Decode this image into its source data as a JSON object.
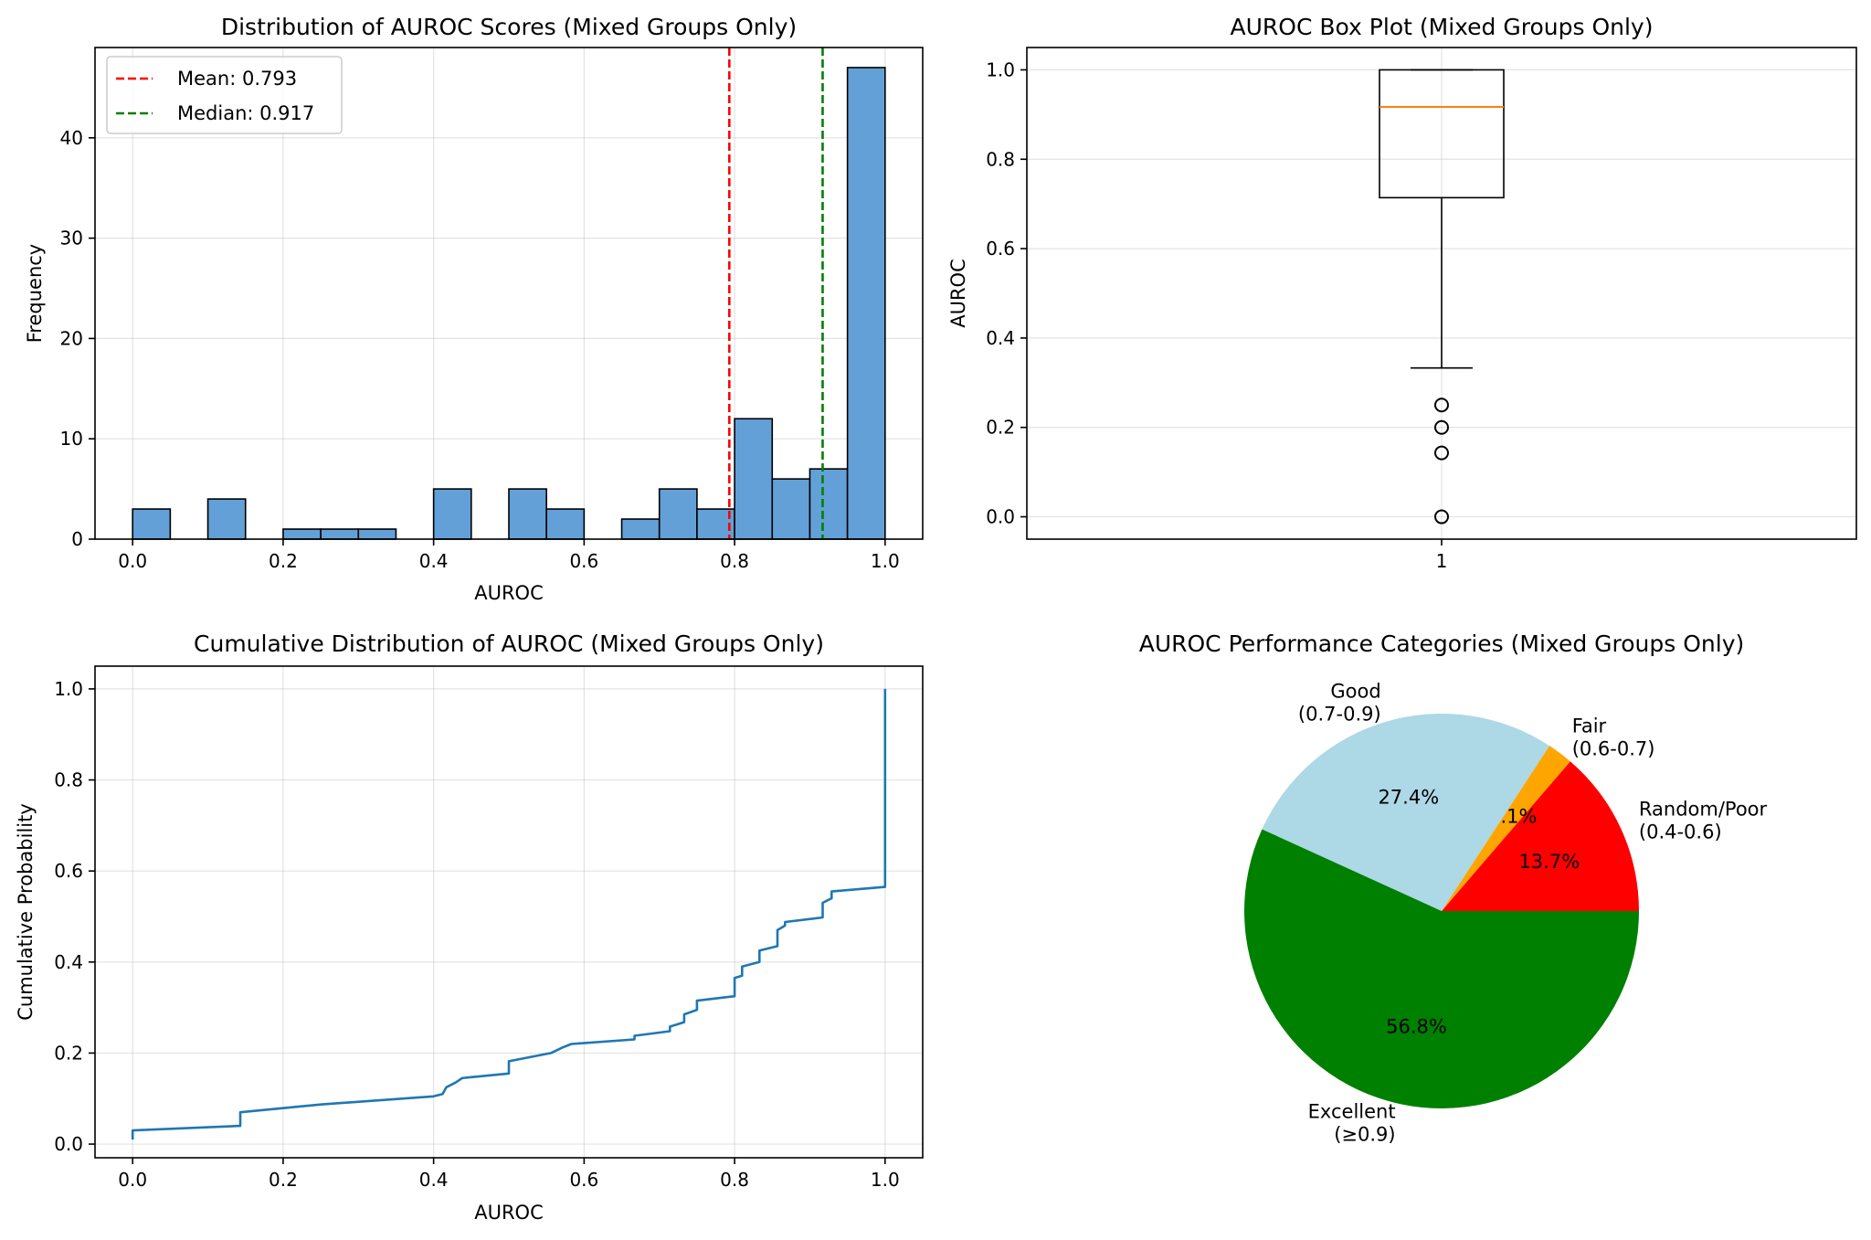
{
  "chart_data": [
    {
      "type": "bar",
      "title": "Distribution of AUROC Scores (Mixed Groups Only)",
      "xlabel": "AUROC",
      "ylabel": "Frequency",
      "xlim": [
        -0.05,
        1.05
      ],
      "ylim": [
        0,
        49
      ],
      "xticks": [
        "0.0",
        "0.2",
        "0.4",
        "0.6",
        "0.8",
        "1.0"
      ],
      "yticks": [
        "0",
        "10",
        "20",
        "30",
        "40"
      ],
      "bin_edges": [
        0.0,
        0.05,
        0.1,
        0.15,
        0.2,
        0.25,
        0.3,
        0.35,
        0.4,
        0.45,
        0.5,
        0.55,
        0.6,
        0.65,
        0.7,
        0.75,
        0.8,
        0.85,
        0.9,
        0.95,
        1.0
      ],
      "values": [
        3,
        0,
        4,
        0,
        1,
        1,
        1,
        0,
        5,
        0,
        5,
        3,
        0,
        2,
        5,
        3,
        12,
        6,
        7,
        47
      ],
      "bar_color": "#5b9bd5",
      "grid": true,
      "legend_position": "top-left",
      "reference_lines": [
        {
          "label": "Mean: 0.793",
          "x": 0.793,
          "color": "#ff0000",
          "style": "dashed"
        },
        {
          "label": "Median: 0.917",
          "x": 0.917,
          "color": "#008000",
          "style": "dashed"
        }
      ]
    },
    {
      "type": "box",
      "title": "AUROC Box Plot (Mixed Groups Only)",
      "xlabel": "",
      "ylabel": "AUROC",
      "ylim": [
        -0.05,
        1.05
      ],
      "yticks": [
        "0.0",
        "0.2",
        "0.4",
        "0.6",
        "0.8",
        "1.0"
      ],
      "xticks": [
        "1"
      ],
      "grid": true,
      "box": {
        "whisker_low": 0.333,
        "q1": 0.714,
        "median": 0.917,
        "q3": 1.0,
        "whisker_high": 1.0
      },
      "outliers": [
        0.25,
        0.2,
        0.143,
        0.0
      ],
      "median_color": "#ff7f0e"
    },
    {
      "type": "line",
      "title": "Cumulative Distribution of AUROC (Mixed Groups Only)",
      "xlabel": "AUROC",
      "ylabel": "Cumulative Probability",
      "xlim": [
        -0.05,
        1.05
      ],
      "ylim": [
        -0.03,
        1.05
      ],
      "xticks": [
        "0.0",
        "0.2",
        "0.4",
        "0.6",
        "0.8",
        "1.0"
      ],
      "yticks": [
        "0.0",
        "0.2",
        "0.4",
        "0.6",
        "0.8",
        "1.0"
      ],
      "grid": true,
      "line_color": "#1f77b4",
      "points": [
        [
          0.0,
          0.01
        ],
        [
          0.0,
          0.03
        ],
        [
          0.143,
          0.04
        ],
        [
          0.143,
          0.07
        ],
        [
          0.25,
          0.087
        ],
        [
          0.4,
          0.105
        ],
        [
          0.412,
          0.11
        ],
        [
          0.417,
          0.125
        ],
        [
          0.429,
          0.135
        ],
        [
          0.438,
          0.145
        ],
        [
          0.5,
          0.155
        ],
        [
          0.5,
          0.182
        ],
        [
          0.556,
          0.2
        ],
        [
          0.571,
          0.212
        ],
        [
          0.583,
          0.22
        ],
        [
          0.667,
          0.23
        ],
        [
          0.667,
          0.238
        ],
        [
          0.714,
          0.248
        ],
        [
          0.714,
          0.258
        ],
        [
          0.733,
          0.268
        ],
        [
          0.733,
          0.285
        ],
        [
          0.75,
          0.295
        ],
        [
          0.75,
          0.315
        ],
        [
          0.8,
          0.325
        ],
        [
          0.8,
          0.365
        ],
        [
          0.81,
          0.37
        ],
        [
          0.81,
          0.39
        ],
        [
          0.833,
          0.4
        ],
        [
          0.833,
          0.425
        ],
        [
          0.857,
          0.435
        ],
        [
          0.857,
          0.47
        ],
        [
          0.867,
          0.48
        ],
        [
          0.867,
          0.488
        ],
        [
          0.917,
          0.498
        ],
        [
          0.917,
          0.53
        ],
        [
          0.929,
          0.54
        ],
        [
          0.929,
          0.555
        ],
        [
          1.0,
          0.565
        ],
        [
          1.0,
          1.0
        ]
      ]
    },
    {
      "type": "pie",
      "title": "AUROC Performance Categories (Mixed Groups Only)",
      "slices": [
        {
          "label": "Random/Poor\n(0.4-0.6)",
          "value": 13.7,
          "pct_text": "13.7%",
          "color": "#ff0000"
        },
        {
          "label": "Fair\n(0.6-0.7)",
          "value": 2.1,
          "pct_text": "2.1%",
          "color": "#ffa500"
        },
        {
          "label": "Good\n(0.7-0.9)",
          "value": 27.4,
          "pct_text": "27.4%",
          "color": "#add8e6"
        },
        {
          "label": "Excellent\n(≥0.9)",
          "value": 56.8,
          "pct_text": "56.8%",
          "color": "#008000"
        }
      ],
      "start_angle_deg": 0,
      "direction": "counterclockwise"
    }
  ]
}
